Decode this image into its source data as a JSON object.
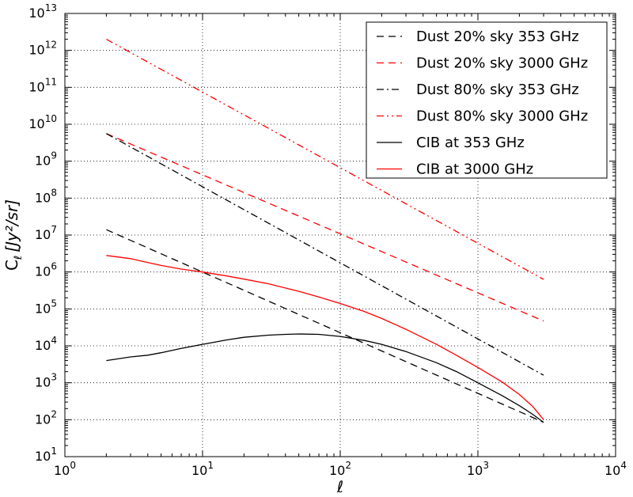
{
  "chart_data": {
    "type": "line",
    "title": "",
    "xlabel": "ℓ",
    "ylabel": "C",
    "ylabel_sub": "ℓ",
    "ylabel_units": "[Jy²/sr]",
    "xscale": "log",
    "yscale": "log",
    "xlim": [
      1,
      10000
    ],
    "ylim": [
      10,
      10000000000000
    ],
    "grid": true,
    "legend_position": "top-right",
    "x_tick_values": [
      1,
      10,
      100,
      1000,
      10000
    ],
    "y_tick_values": [
      10,
      100,
      1000,
      10000,
      100000,
      1000000,
      10000000,
      100000000,
      1000000000,
      10000000000,
      100000000000,
      1000000000000,
      10000000000000
    ],
    "x_ticks": [
      {
        "base": "10",
        "exp": "0"
      },
      {
        "base": "10",
        "exp": "1"
      },
      {
        "base": "10",
        "exp": "2"
      },
      {
        "base": "10",
        "exp": "3"
      },
      {
        "base": "10",
        "exp": "4"
      }
    ],
    "y_ticks": [
      {
        "base": "10",
        "exp": "1"
      },
      {
        "base": "10",
        "exp": "2"
      },
      {
        "base": "10",
        "exp": "3"
      },
      {
        "base": "10",
        "exp": "4"
      },
      {
        "base": "10",
        "exp": "5"
      },
      {
        "base": "10",
        "exp": "6"
      },
      {
        "base": "10",
        "exp": "7"
      },
      {
        "base": "10",
        "exp": "8"
      },
      {
        "base": "10",
        "exp": "9"
      },
      {
        "base": "10",
        "exp": "10"
      },
      {
        "base": "10",
        "exp": "11"
      },
      {
        "base": "10",
        "exp": "12"
      },
      {
        "base": "10",
        "exp": "13"
      }
    ],
    "series": [
      {
        "name": "Dust 20% sky 353 GHz",
        "color": "#000000",
        "style": "dashed",
        "x": [
          2,
          3000
        ],
        "y": [
          14000000,
          85
        ]
      },
      {
        "name": "Dust 20% sky 3000 GHz",
        "color": "#ff0000",
        "style": "dashed",
        "x": [
          2,
          3000
        ],
        "y": [
          5600000000,
          47000
        ]
      },
      {
        "name": "Dust 80% sky 353 GHz",
        "color": "#000000",
        "style": "dashdot",
        "x": [
          2,
          3000
        ],
        "y": [
          5600000000,
          1600
        ]
      },
      {
        "name": "Dust 80% sky 3000 GHz",
        "color": "#ff0000",
        "style": "dashdotdot",
        "x": [
          2,
          3000
        ],
        "y": [
          2000000000000,
          630000
        ]
      },
      {
        "name": "CIB at 353 GHz",
        "color": "#000000",
        "style": "solid",
        "x": [
          2,
          3,
          4,
          5,
          7,
          10,
          15,
          20,
          30,
          40,
          50,
          70,
          100,
          150,
          200,
          300,
          500,
          700,
          1000,
          1500,
          2000,
          2500,
          3000
        ],
        "y": [
          4000,
          5000,
          5600,
          6500,
          8500,
          11000,
          14500,
          17000,
          19500,
          20500,
          21000,
          20500,
          18000,
          14000,
          11000,
          7000,
          3500,
          2000,
          1000,
          450,
          240,
          140,
          85
        ]
      },
      {
        "name": "CIB at 3000 GHz",
        "color": "#ff0000",
        "style": "solid",
        "x": [
          2,
          3,
          4,
          5,
          7,
          10,
          15,
          20,
          30,
          50,
          70,
          100,
          150,
          200,
          300,
          500,
          700,
          1000,
          1500,
          2000,
          2500,
          3000
        ],
        "y": [
          2800000,
          2300000,
          1800000,
          1500000,
          1200000,
          1000000,
          780000,
          640000,
          480000,
          300000,
          210000,
          140000,
          85000,
          55000,
          28000,
          11000,
          5500,
          2600,
          1050,
          480,
          230,
          100
        ]
      }
    ]
  }
}
